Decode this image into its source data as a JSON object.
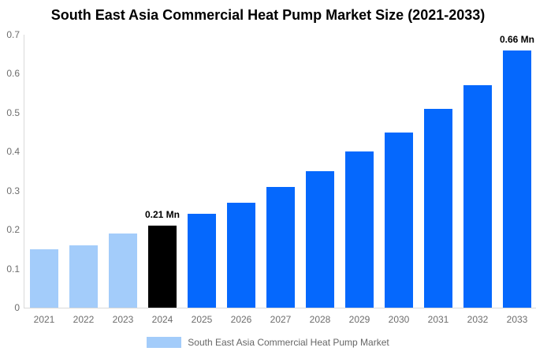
{
  "chart_data": {
    "type": "bar",
    "title": "South East Asia Commercial Heat Pump Market Size (2021-2033)",
    "categories": [
      "2021",
      "2022",
      "2023",
      "2024",
      "2025",
      "2026",
      "2027",
      "2028",
      "2029",
      "2030",
      "2031",
      "2032",
      "2033"
    ],
    "values": [
      0.15,
      0.16,
      0.19,
      0.21,
      0.24,
      0.27,
      0.31,
      0.35,
      0.4,
      0.45,
      0.51,
      0.57,
      0.66
    ],
    "unit": "Mn",
    "bar_colors": [
      "#A3CCFA",
      "#A3CCFA",
      "#A3CCFA",
      "#000000",
      "#0568FD",
      "#0568FD",
      "#0568FD",
      "#0568FD",
      "#0568FD",
      "#0568FD",
      "#0568FD",
      "#0568FD",
      "#0568FD"
    ],
    "annotations": [
      {
        "category": "2024",
        "text": "0.21 Mn"
      },
      {
        "category": "2033",
        "text": "0.66 Mn"
      }
    ],
    "xlabel": "",
    "ylabel": "",
    "ylim": [
      0,
      0.7
    ],
    "yticks": [
      0,
      0.1,
      0.2,
      0.3,
      0.4,
      0.5,
      0.6,
      0.7
    ],
    "ytick_labels": [
      "0",
      "0.1",
      "0.2",
      "0.3",
      "0.4",
      "0.5",
      "0.6",
      "0.7"
    ],
    "grid": false,
    "legend": {
      "position": "bottom",
      "entries": [
        {
          "label": "South East Asia Commercial Heat Pump Market",
          "color": "#A3CCFA"
        }
      ]
    }
  },
  "colors": {
    "historical_bar": "#A3CCFA",
    "highlight_bar": "#000000",
    "forecast_bar": "#0568FD",
    "axis_line": "#D9D9D9",
    "tick_text": "#6D6D6D",
    "annotation_text": "#000000",
    "title_text": "#000000",
    "legend_text": "#666666",
    "background": "#FFFFFF"
  }
}
